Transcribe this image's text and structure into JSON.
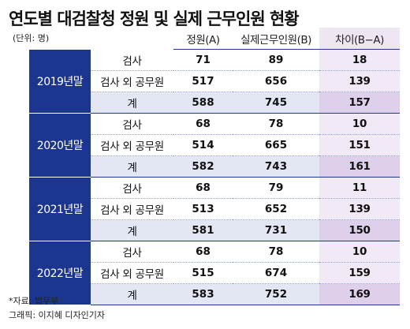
{
  "title": "연도별 대검찰청 정원 및 실제 근무인원 현황",
  "unit": "(단위: 명)",
  "headers": {
    "capacity": "정원(A)",
    "actual": "실제근무인원(B)",
    "diff": "차이(B−A)"
  },
  "groups": [
    {
      "year": "2019년말",
      "rows": [
        {
          "category": "검사",
          "capacity": "71",
          "actual": "89",
          "diff": "18"
        },
        {
          "category": "검사 외 공무원",
          "capacity": "517",
          "actual": "656",
          "diff": "139"
        },
        {
          "category": "계",
          "capacity": "588",
          "actual": "745",
          "diff": "157"
        }
      ]
    },
    {
      "year": "2020년말",
      "rows": [
        {
          "category": "검사",
          "capacity": "68",
          "actual": "78",
          "diff": "10"
        },
        {
          "category": "검사 외 공무원",
          "capacity": "514",
          "actual": "665",
          "diff": "151"
        },
        {
          "category": "계",
          "capacity": "582",
          "actual": "743",
          "diff": "161"
        }
      ]
    },
    {
      "year": "2021년말",
      "rows": [
        {
          "category": "검사",
          "capacity": "68",
          "actual": "79",
          "diff": "11"
        },
        {
          "category": "검사 외 공무원",
          "capacity": "513",
          "actual": "652",
          "diff": "139"
        },
        {
          "category": "계",
          "capacity": "581",
          "actual": "731",
          "diff": "150"
        }
      ]
    },
    {
      "year": "2022년말",
      "rows": [
        {
          "category": "검사",
          "capacity": "68",
          "actual": "78",
          "diff": "10"
        },
        {
          "category": "검사 외 공무원",
          "capacity": "515",
          "actual": "674",
          "diff": "159"
        },
        {
          "category": "계",
          "capacity": "583",
          "actual": "752",
          "diff": "169"
        }
      ]
    }
  ],
  "source": "*자료: 법무부",
  "credit": "그래픽: 이지혜 디자인기자",
  "colors": {
    "year_cell": "#1c3690",
    "total_row": "#e3e6f3",
    "diff_column": "#f1e9f6",
    "diff_total": "#ded0ea"
  }
}
